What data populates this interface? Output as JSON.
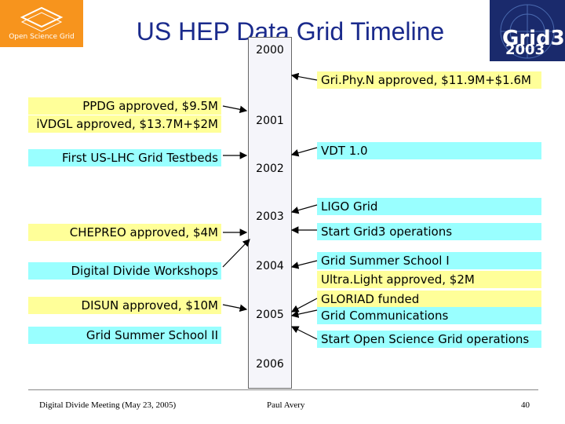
{
  "logos": {
    "left": "Open Science Grid",
    "right_main": "Grid3",
    "right_year": "2003"
  },
  "title": "US HEP Data Grid Timeline",
  "years": [
    "2000",
    "2001",
    "2002",
    "2003",
    "2004",
    "2005",
    "2006"
  ],
  "left_items": [
    "PPDG approved, $9.5M",
    "iVDGL approved, $13.7M+$2M",
    "First US-LHC Grid Testbeds",
    "CHEPREO approved, $4M",
    "Digital Divide Workshops",
    "DISUN approved, $10M",
    "Grid Summer School II"
  ],
  "right_items": [
    "Gri.Phy.N approved, $11.9M+$1.6M",
    "VDT 1.0",
    "LIGO Grid",
    "Start Grid3 operations",
    "Grid Summer School I",
    "Ultra.Light approved, $2M",
    "GLORIAD funded",
    "Grid Communications",
    "Start Open Science Grid operations"
  ],
  "footer": {
    "left": "Digital Divide Meeting (May 23, 2005)",
    "center": "Paul Avery",
    "page": "40"
  },
  "colors": {
    "yellow": "#ffff99",
    "cyan": "#99ffff",
    "title": "#1a2a8c"
  }
}
